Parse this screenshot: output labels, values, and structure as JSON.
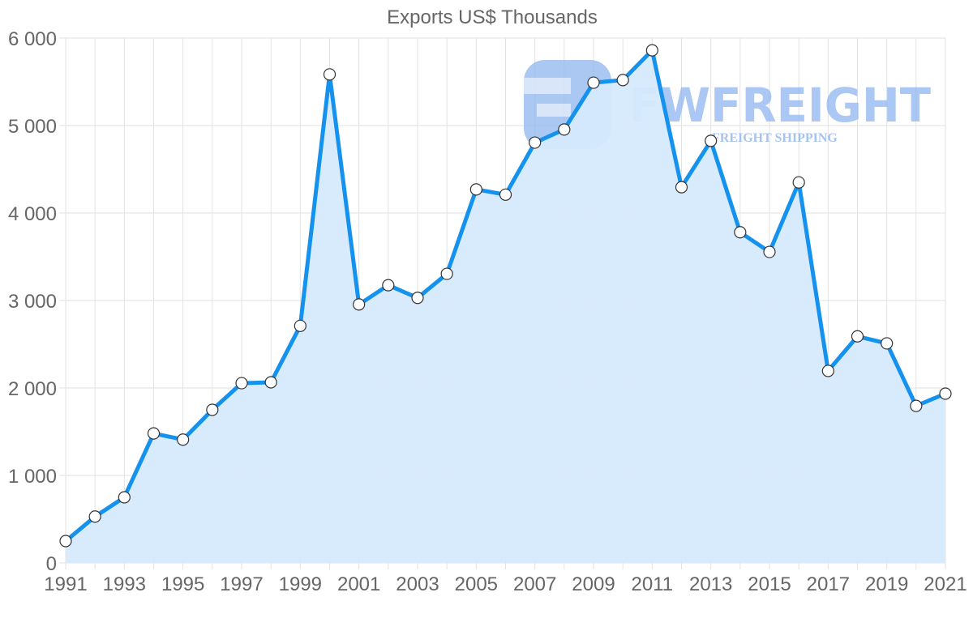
{
  "title": "Exports US$ Thousands",
  "watermark": {
    "brand": "FWFREIGHT",
    "tagline": "FREIGHT SHIPPING",
    "color": "#8fb5ef"
  },
  "colors": {
    "line": "#1592ee",
    "fill": "#d6eafd",
    "grid": "#e2e2e2",
    "tick_text": "#666666",
    "point_fill": "#ffffff",
    "point_stroke": "#333333"
  },
  "chart_data": {
    "type": "area",
    "title": "Exports US$ Thousands",
    "xlabel": "",
    "ylabel": "",
    "x": [
      1991,
      1992,
      1993,
      1994,
      1995,
      1996,
      1997,
      1998,
      1999,
      2000,
      2001,
      2002,
      2003,
      2004,
      2005,
      2006,
      2007,
      2008,
      2009,
      2010,
      2011,
      2012,
      2013,
      2014,
      2015,
      2016,
      2017,
      2018,
      2019,
      2020,
      2021
    ],
    "series": [
      {
        "name": "Exports US$ Thousands",
        "values": [
          250,
          530,
          750,
          1480,
          1410,
          1750,
          2055,
          2065,
          2710,
          5585,
          2955,
          3175,
          3030,
          3305,
          4270,
          4210,
          4805,
          4955,
          5490,
          5520,
          5860,
          4295,
          4825,
          3780,
          3555,
          4350,
          2195,
          2590,
          2510,
          1795,
          1935
        ]
      }
    ],
    "ylim": [
      0,
      6000
    ],
    "xlim": [
      1991,
      2021
    ],
    "y_ticks": [
      "0",
      "1 000",
      "2 000",
      "3 000",
      "4 000",
      "5 000",
      "6 000"
    ],
    "y_tick_values": [
      0,
      1000,
      2000,
      3000,
      4000,
      5000,
      6000
    ],
    "x_ticks": [
      "1991",
      "1993",
      "1995",
      "1997",
      "1999",
      "2001",
      "2003",
      "2005",
      "2007",
      "2009",
      "2011",
      "2013",
      "2015",
      "2017",
      "2019",
      "2021"
    ],
    "grid": true,
    "legend": "none"
  }
}
